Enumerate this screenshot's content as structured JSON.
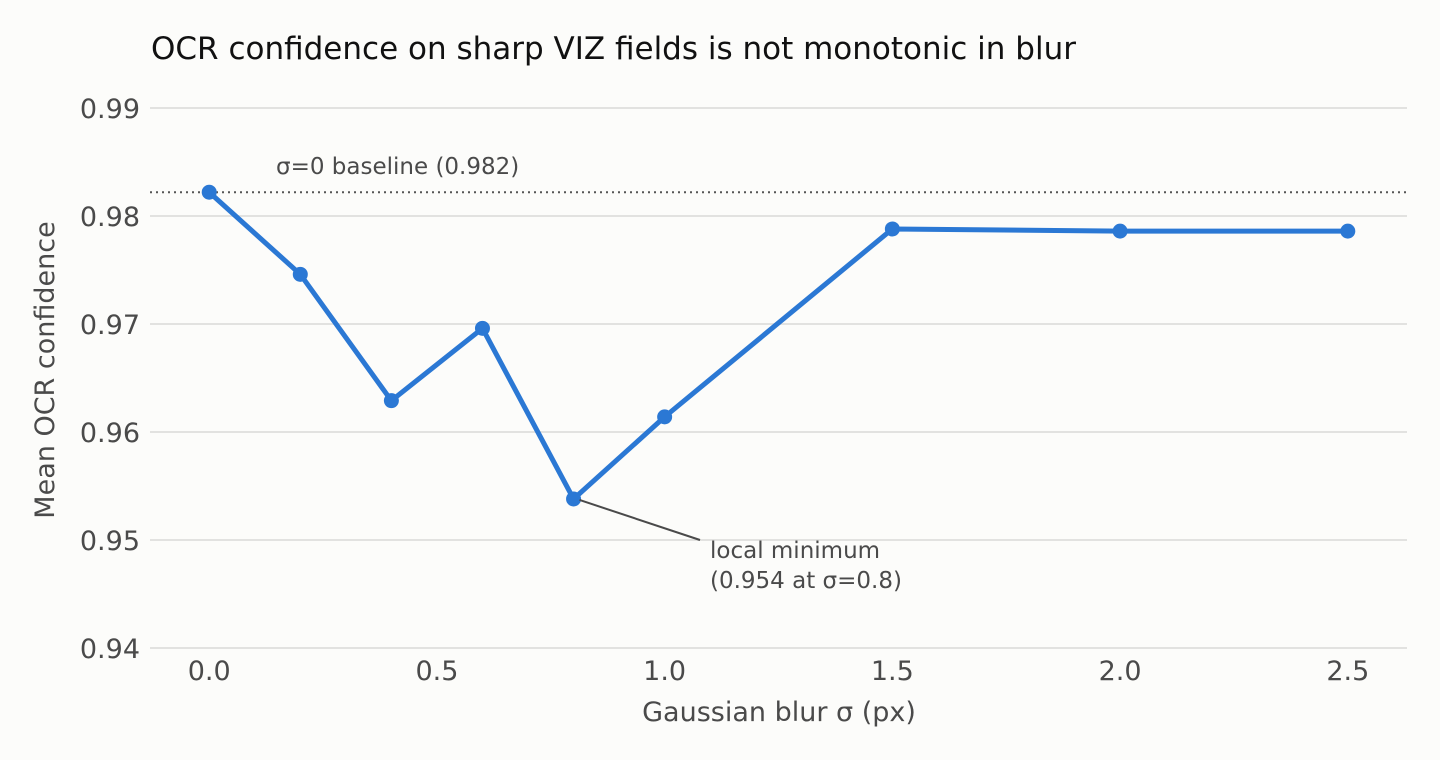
{
  "chart_data": {
    "type": "line",
    "title": "OCR confidence on sharp VIZ fields is not monotonic in blur",
    "xlabel": "Gaussian blur σ (px)",
    "ylabel": "Mean OCR confidence",
    "x": [
      0.0,
      0.2,
      0.4,
      0.6,
      0.8,
      1.0,
      1.5,
      2.0,
      2.5
    ],
    "series": [
      {
        "values": [
          0.9822,
          0.9746,
          0.9629,
          0.9696,
          0.9538,
          0.9614,
          0.9788,
          0.9786,
          0.9786
        ]
      }
    ],
    "xlim": [
      -0.13,
      2.63
    ],
    "ylim": [
      0.94,
      0.99
    ],
    "xticks": [
      0.0,
      0.5,
      1.0,
      1.5,
      2.0,
      2.5
    ],
    "xtick_labels": [
      "0.0",
      "0.5",
      "1.0",
      "1.5",
      "2.0",
      "2.5"
    ],
    "yticks": [
      0.94,
      0.95,
      0.96,
      0.97,
      0.98,
      0.99
    ],
    "ytick_labels": [
      "0.94",
      "0.95",
      "0.96",
      "0.97",
      "0.98",
      "0.99"
    ],
    "grid": "horizontal",
    "baseline": {
      "value": 0.9822,
      "label": "σ=0 baseline (0.982)"
    },
    "annotation": {
      "x": 0.8,
      "y": 0.9538,
      "lines": [
        "local minimum",
        "(0.954 at σ=0.8)"
      ]
    },
    "colors": {
      "line": "#2b78d4",
      "baseline": "#555555",
      "grid": "#e2e2e0"
    }
  }
}
